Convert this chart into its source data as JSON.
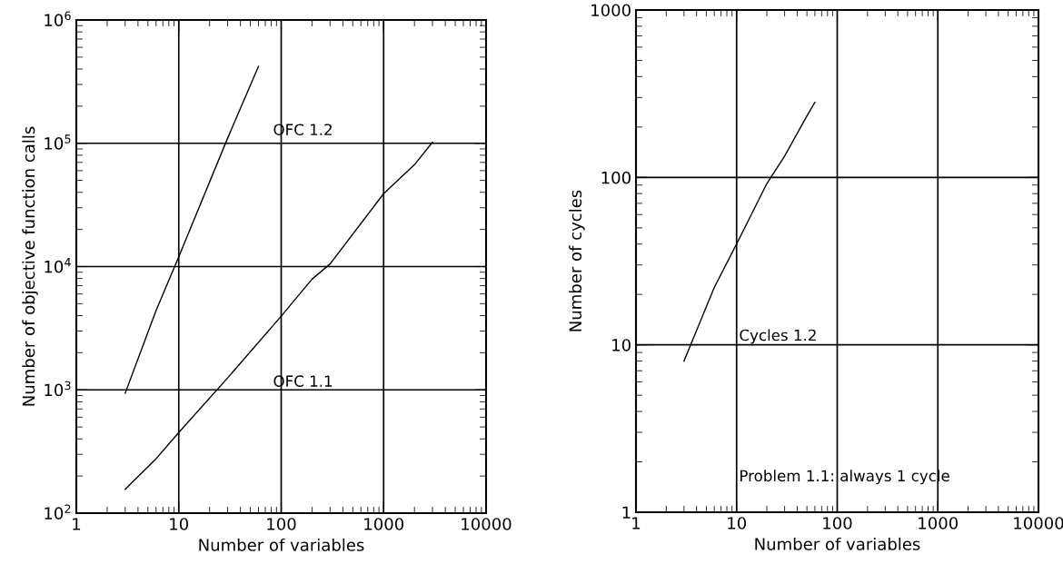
{
  "chart_data": [
    {
      "type": "line",
      "xlabel": "Number of variables",
      "ylabel": "Number of objective function calls",
      "log": "xy",
      "grid": true,
      "legend": false,
      "xlim": [
        1,
        10000
      ],
      "xticks": [
        1,
        10,
        100,
        1000,
        10000
      ],
      "ylim": [
        100,
        1000000
      ],
      "yticks": [
        {
          "value": 100,
          "label": "10$^{2}$"
        },
        {
          "value": 1000,
          "label": "10$^{3}$"
        },
        {
          "value": 10000,
          "label": "10$^{4}$"
        },
        {
          "value": 100000,
          "label": "10$^{5}$"
        },
        {
          "value": 1000000,
          "label": "10$^{6}$"
        }
      ],
      "series": [
        {
          "color": "#000000",
          "x": [
            3,
            6,
            10,
            30,
            60
          ],
          "values": [
            940,
            4400,
            12000,
            110000,
            420000
          ]
        },
        {
          "color": "#000000",
          "x": [
            3,
            6,
            10,
            30,
            100,
            200,
            300,
            1000,
            2000,
            3000
          ],
          "values": [
            156,
            276,
            450,
            1250,
            3960,
            7900,
            10500,
            39000,
            67000,
            102000
          ]
        }
      ],
      "annotations": [
        "OFC 1.2",
        "OFC 1.1"
      ]
    },
    {
      "type": "line",
      "xlabel": "Number of variables",
      "ylabel": "Number of cycles",
      "log": "xy",
      "grid": true,
      "legend": false,
      "xlim": [
        1,
        10000
      ],
      "xticks": [
        1,
        10,
        100,
        1000,
        10000
      ],
      "ylim": [
        1,
        1000
      ],
      "yticks": [
        1,
        10,
        100,
        1000
      ],
      "series": [
        {
          "color": "#000000",
          "x": [
            3,
            6,
            10,
            20,
            30,
            50,
            60
          ],
          "values": [
            8,
            22,
            40,
            92,
            134,
            233,
            281
          ]
        }
      ],
      "annotations": [
        "Cycles 1.2",
        "Problem 1.1: always 1 cycle"
      ]
    }
  ]
}
